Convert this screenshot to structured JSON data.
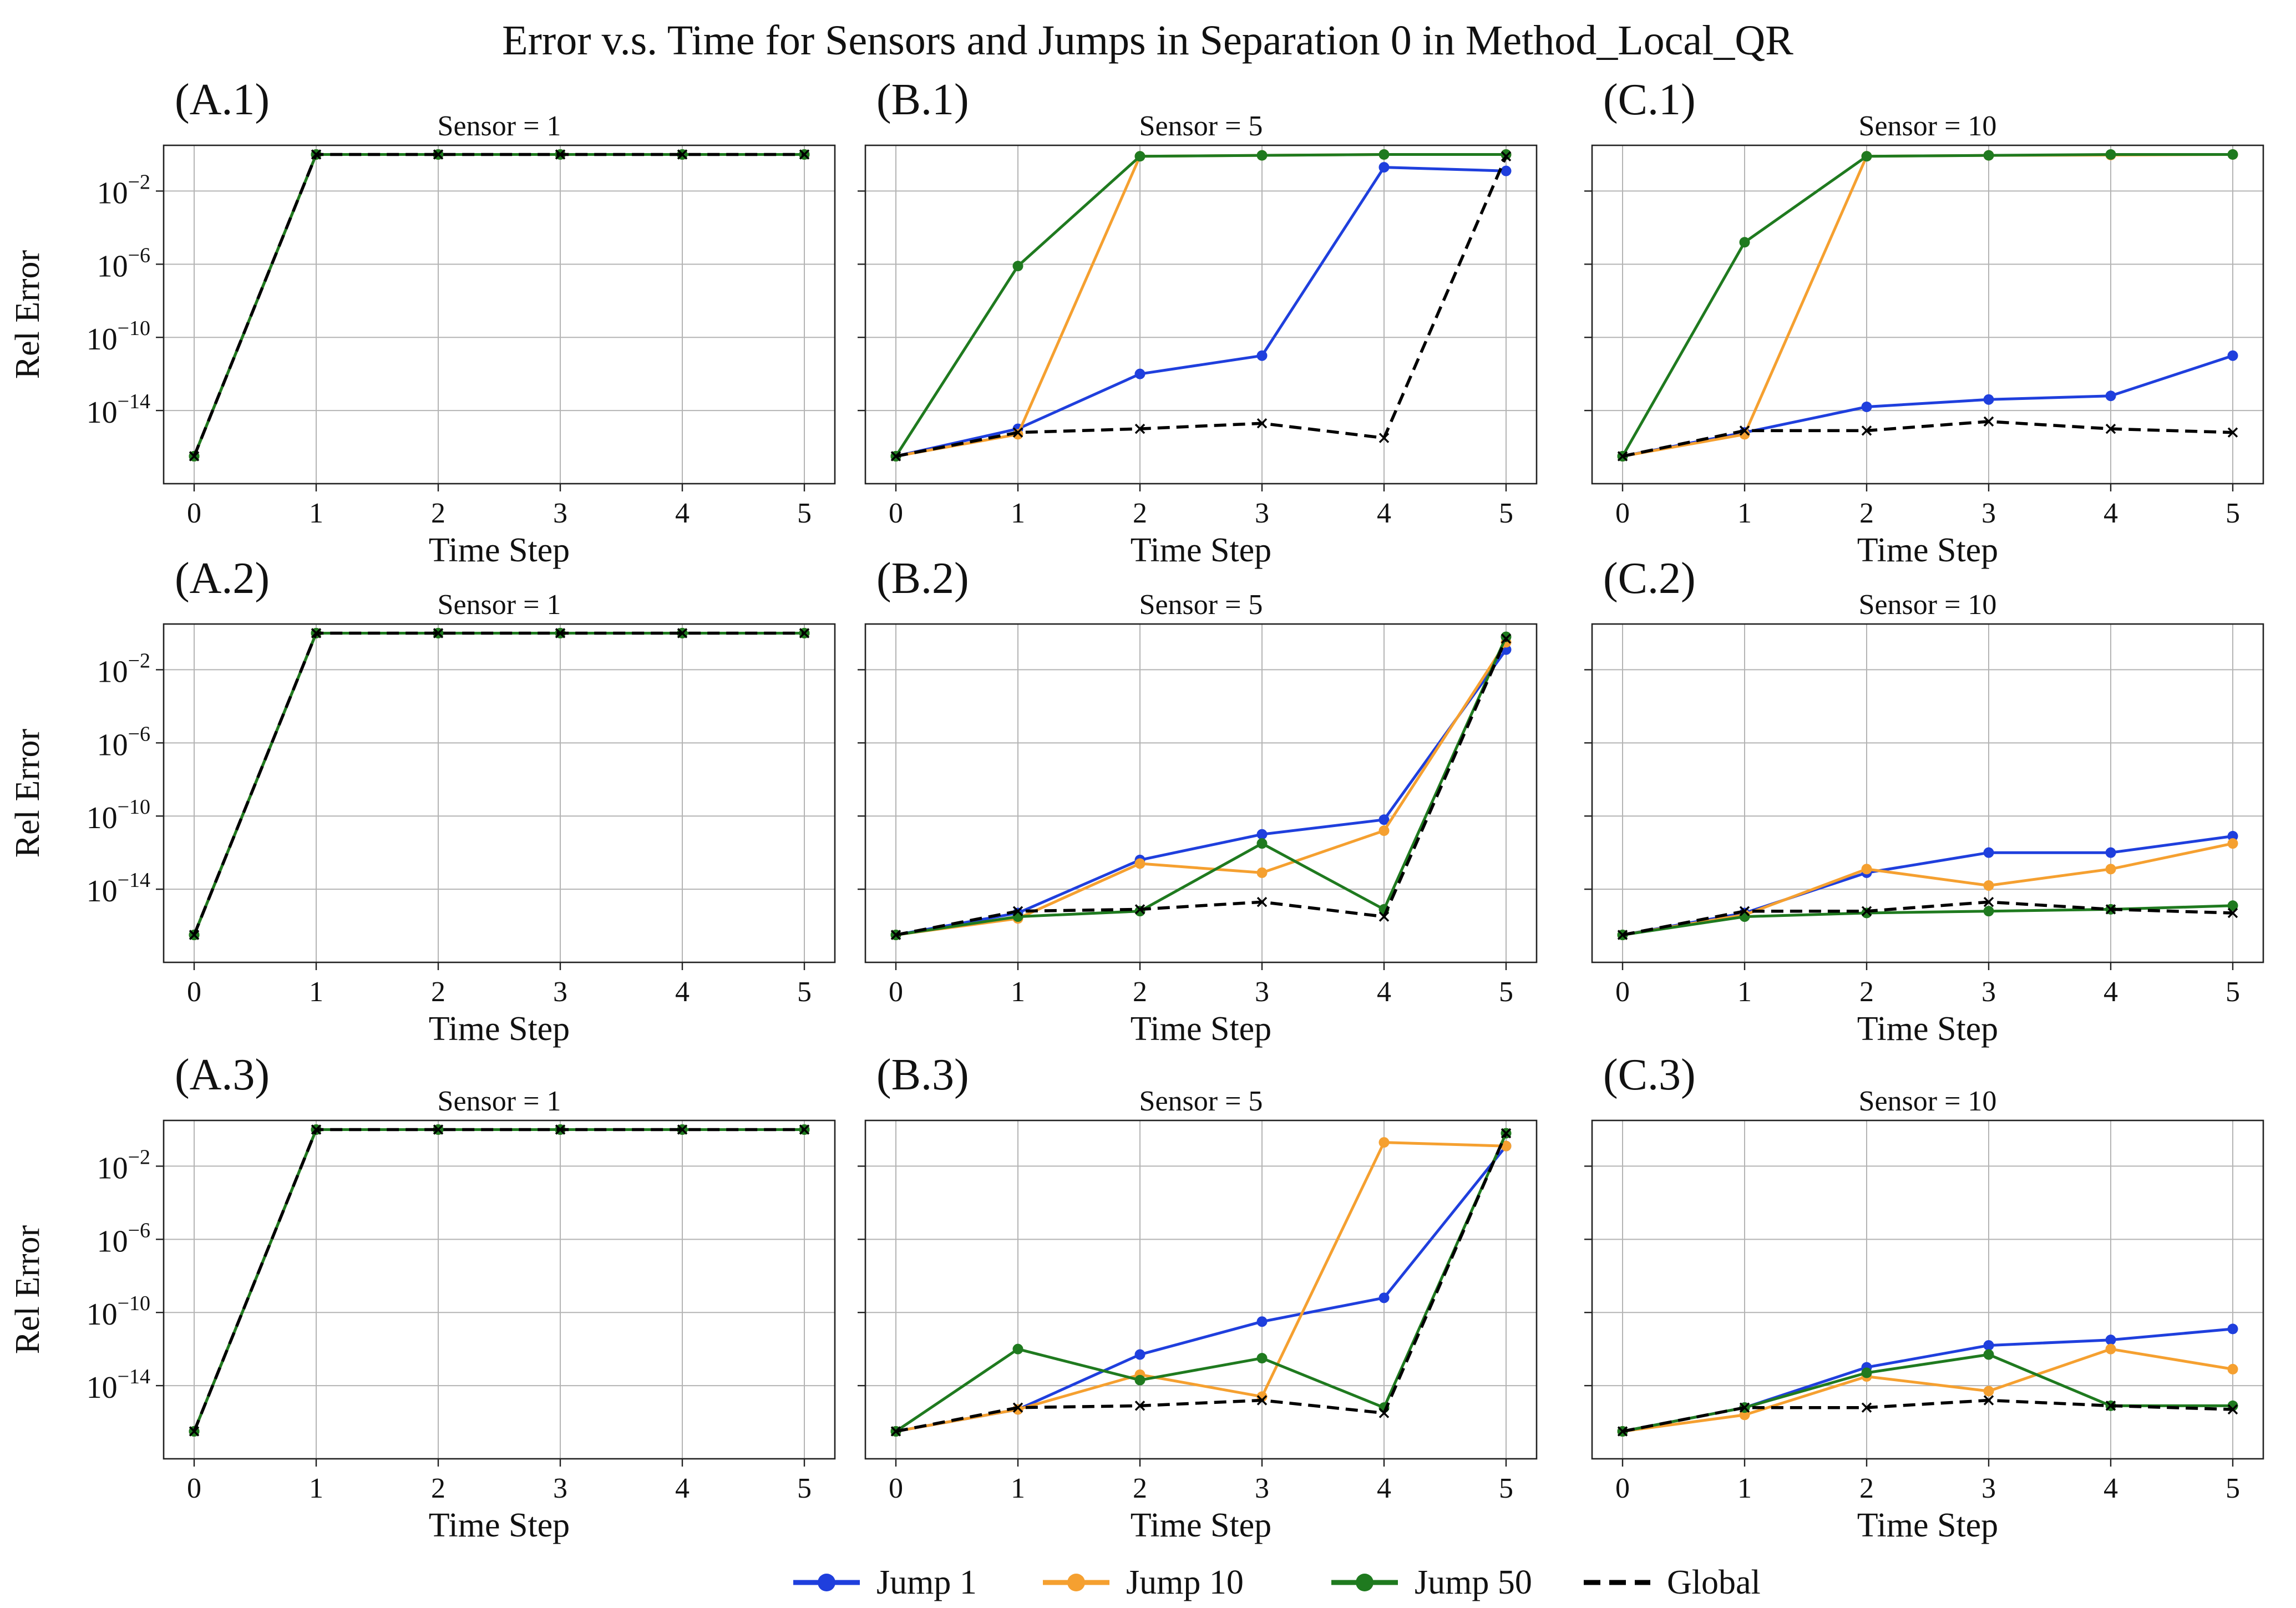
{
  "figure_title": "Error v.s. Time for Sensors and Jumps in Separation 0 in Method_Local_QR",
  "legend": {
    "entries": [
      {
        "label": "Jump 1",
        "color": "#1f3fdd",
        "style": "solid-dot"
      },
      {
        "label": "Jump 10",
        "color": "#f5a030",
        "style": "solid-dot"
      },
      {
        "label": "Jump 50",
        "color": "#1f7a1f",
        "style": "solid-dot"
      },
      {
        "label": "Global",
        "color": "#000000",
        "style": "dashed"
      }
    ]
  },
  "chart_data": [
    {
      "id": "A.1",
      "label": "(A.1)",
      "title": "Sensor = 1",
      "type": "line",
      "xlabel": "Time Step",
      "ylabel": "Rel Error",
      "x": [
        0,
        1,
        2,
        3,
        4,
        5
      ],
      "xticks": [
        "0",
        "1",
        "2",
        "3",
        "4",
        "5"
      ],
      "yscale": "log",
      "ylim_exp": [
        -18,
        0.5
      ],
      "yticks": [
        {
          "exp": -2,
          "label": "10"
        },
        {
          "exp": -6,
          "label": "10"
        },
        {
          "exp": -10,
          "label": "10"
        },
        {
          "exp": -14,
          "label": "10"
        }
      ],
      "yticks_sup": [
        "−2",
        "−6",
        "−10",
        "−14"
      ],
      "series": [
        {
          "name": "Jump 1",
          "log10_values": [
            -16.5,
            0,
            0,
            0,
            0,
            0
          ]
        },
        {
          "name": "Jump 10",
          "log10_values": [
            -16.5,
            0,
            0,
            0,
            0,
            0
          ]
        },
        {
          "name": "Jump 50",
          "log10_values": [
            -16.5,
            0,
            0,
            0,
            0,
            0
          ]
        },
        {
          "name": "Global",
          "log10_values": [
            -16.5,
            0,
            0,
            0,
            0,
            0
          ]
        }
      ]
    },
    {
      "id": "B.1",
      "label": "(B.1)",
      "title": "Sensor = 5",
      "type": "line",
      "xlabel": "Time Step",
      "ylabel": "",
      "x": [
        0,
        1,
        2,
        3,
        4,
        5
      ],
      "xticks": [
        "0",
        "1",
        "2",
        "3",
        "4",
        "5"
      ],
      "yscale": "log",
      "ylim_exp": [
        -18,
        0.5
      ],
      "yticks": [],
      "yticks_sup": [],
      "series": [
        {
          "name": "Jump 1",
          "log10_values": [
            -16.5,
            -15.0,
            -12.0,
            -11.0,
            -0.7,
            -0.9
          ]
        },
        {
          "name": "Jump 10",
          "log10_values": [
            -16.5,
            -15.3,
            -0.1,
            -0.05,
            0,
            0
          ]
        },
        {
          "name": "Jump 50",
          "log10_values": [
            -16.5,
            -6.1,
            -0.1,
            -0.05,
            0,
            0
          ]
        },
        {
          "name": "Global",
          "log10_values": [
            -16.5,
            -15.2,
            -15.0,
            -14.7,
            -15.5,
            -0.1
          ]
        }
      ]
    },
    {
      "id": "C.1",
      "label": "(C.1)",
      "title": "Sensor = 10",
      "type": "line",
      "xlabel": "Time Step",
      "ylabel": "",
      "x": [
        0,
        1,
        2,
        3,
        4,
        5
      ],
      "xticks": [
        "0",
        "1",
        "2",
        "3",
        "4",
        "5"
      ],
      "yscale": "log",
      "ylim_exp": [
        -18,
        0.5
      ],
      "yticks": [],
      "yticks_sup": [],
      "series": [
        {
          "name": "Jump 1",
          "log10_values": [
            -16.5,
            -15.2,
            -13.8,
            -13.4,
            -13.2,
            -11.0
          ]
        },
        {
          "name": "Jump 10",
          "log10_values": [
            -16.5,
            -15.3,
            -0.1,
            -0.05,
            -0.03,
            0
          ]
        },
        {
          "name": "Jump 50",
          "log10_values": [
            -16.5,
            -4.8,
            -0.1,
            -0.05,
            0,
            0
          ]
        },
        {
          "name": "Global",
          "log10_values": [
            -16.5,
            -15.1,
            -15.1,
            -14.6,
            -15.0,
            -15.2
          ]
        }
      ]
    },
    {
      "id": "A.2",
      "label": "(A.2)",
      "title": "Sensor = 1",
      "type": "line",
      "xlabel": "Time Step",
      "ylabel": "Rel Error",
      "x": [
        0,
        1,
        2,
        3,
        4,
        5
      ],
      "xticks": [
        "0",
        "1",
        "2",
        "3",
        "4",
        "5"
      ],
      "yscale": "log",
      "ylim_exp": [
        -18,
        0.5
      ],
      "yticks": [
        {
          "exp": -2,
          "label": "10"
        },
        {
          "exp": -6,
          "label": "10"
        },
        {
          "exp": -10,
          "label": "10"
        },
        {
          "exp": -14,
          "label": "10"
        }
      ],
      "yticks_sup": [
        "−2",
        "−6",
        "−10",
        "−14"
      ],
      "series": [
        {
          "name": "Jump 1",
          "log10_values": [
            -16.5,
            0,
            0,
            0,
            0,
            0
          ]
        },
        {
          "name": "Jump 10",
          "log10_values": [
            -16.5,
            0,
            0,
            0,
            0,
            0
          ]
        },
        {
          "name": "Jump 50",
          "log10_values": [
            -16.5,
            0,
            0,
            0,
            0,
            0
          ]
        },
        {
          "name": "Global",
          "log10_values": [
            -16.5,
            0,
            0,
            0,
            0,
            0
          ]
        }
      ]
    },
    {
      "id": "B.2",
      "label": "(B.2)",
      "title": "Sensor = 5",
      "type": "line",
      "xlabel": "Time Step",
      "ylabel": "",
      "x": [
        0,
        1,
        2,
        3,
        4,
        5
      ],
      "xticks": [
        "0",
        "1",
        "2",
        "3",
        "4",
        "5"
      ],
      "yscale": "log",
      "ylim_exp": [
        -18,
        0.5
      ],
      "yticks": [],
      "yticks_sup": [],
      "series": [
        {
          "name": "Jump 1",
          "log10_values": [
            -16.5,
            -15.3,
            -12.4,
            -11.0,
            -10.2,
            -0.9
          ]
        },
        {
          "name": "Jump 10",
          "log10_values": [
            -16.5,
            -15.6,
            -12.6,
            -13.1,
            -10.8,
            -0.5
          ]
        },
        {
          "name": "Jump 50",
          "log10_values": [
            -16.5,
            -15.5,
            -15.2,
            -11.5,
            -15.1,
            -0.2
          ]
        },
        {
          "name": "Global",
          "log10_values": [
            -16.5,
            -15.2,
            -15.1,
            -14.7,
            -15.5,
            -0.3
          ]
        }
      ]
    },
    {
      "id": "C.2",
      "label": "(C.2)",
      "title": "Sensor = 10",
      "type": "line",
      "xlabel": "Time Step",
      "ylabel": "",
      "x": [
        0,
        1,
        2,
        3,
        4,
        5
      ],
      "xticks": [
        "0",
        "1",
        "2",
        "3",
        "4",
        "5"
      ],
      "yscale": "log",
      "ylim_exp": [
        -18,
        0.5
      ],
      "yticks": [],
      "yticks_sup": [],
      "series": [
        {
          "name": "Jump 1",
          "log10_values": [
            -16.5,
            -15.3,
            -13.1,
            -12.0,
            -12.0,
            -11.1
          ]
        },
        {
          "name": "Jump 10",
          "log10_values": [
            -16.5,
            -15.4,
            -12.9,
            -13.8,
            -12.9,
            -11.5
          ]
        },
        {
          "name": "Jump 50",
          "log10_values": [
            -16.5,
            -15.5,
            -15.3,
            -15.2,
            -15.1,
            -14.9
          ]
        },
        {
          "name": "Global",
          "log10_values": [
            -16.5,
            -15.2,
            -15.2,
            -14.7,
            -15.1,
            -15.3
          ]
        }
      ]
    },
    {
      "id": "A.3",
      "label": "(A.3)",
      "title": "Sensor = 1",
      "type": "line",
      "xlabel": "Time Step",
      "ylabel": "Rel Error",
      "x": [
        0,
        1,
        2,
        3,
        4,
        5
      ],
      "xticks": [
        "0",
        "1",
        "2",
        "3",
        "4",
        "5"
      ],
      "yscale": "log",
      "ylim_exp": [
        -18,
        0.5
      ],
      "yticks": [
        {
          "exp": -2,
          "label": "10"
        },
        {
          "exp": -6,
          "label": "10"
        },
        {
          "exp": -10,
          "label": "10"
        },
        {
          "exp": -14,
          "label": "10"
        }
      ],
      "yticks_sup": [
        "−2",
        "−6",
        "−10",
        "−14"
      ],
      "series": [
        {
          "name": "Jump 1",
          "log10_values": [
            -16.5,
            0,
            0,
            0,
            0,
            0
          ]
        },
        {
          "name": "Jump 10",
          "log10_values": [
            -16.5,
            0,
            0,
            0,
            0,
            0
          ]
        },
        {
          "name": "Jump 50",
          "log10_values": [
            -16.5,
            0,
            0,
            0,
            0,
            0
          ]
        },
        {
          "name": "Global",
          "log10_values": [
            -16.5,
            0,
            0,
            0,
            0,
            0
          ]
        }
      ]
    },
    {
      "id": "B.3",
      "label": "(B.3)",
      "title": "Sensor = 5",
      "type": "line",
      "xlabel": "Time Step",
      "ylabel": "",
      "x": [
        0,
        1,
        2,
        3,
        4,
        5
      ],
      "xticks": [
        "0",
        "1",
        "2",
        "3",
        "4",
        "5"
      ],
      "yscale": "log",
      "ylim_exp": [
        -18,
        0.5
      ],
      "yticks": [],
      "yticks_sup": [],
      "series": [
        {
          "name": "Jump 1",
          "log10_values": [
            -16.5,
            -15.3,
            -12.3,
            -10.5,
            -9.2,
            -0.9
          ]
        },
        {
          "name": "Jump 10",
          "log10_values": [
            -16.5,
            -15.3,
            -13.4,
            -14.6,
            -0.7,
            -0.9
          ]
        },
        {
          "name": "Jump 50",
          "log10_values": [
            -16.5,
            -12.0,
            -13.7,
            -12.5,
            -15.2,
            -0.2
          ]
        },
        {
          "name": "Global",
          "log10_values": [
            -16.5,
            -15.2,
            -15.1,
            -14.8,
            -15.5,
            -0.2
          ]
        }
      ]
    },
    {
      "id": "C.3",
      "label": "(C.3)",
      "title": "Sensor = 10",
      "type": "line",
      "xlabel": "Time Step",
      "ylabel": "",
      "x": [
        0,
        1,
        2,
        3,
        4,
        5
      ],
      "xticks": [
        "0",
        "1",
        "2",
        "3",
        "4",
        "5"
      ],
      "yscale": "log",
      "ylim_exp": [
        -18,
        0.5
      ],
      "yticks": [],
      "yticks_sup": [],
      "series": [
        {
          "name": "Jump 1",
          "log10_values": [
            -16.5,
            -15.2,
            -13.0,
            -11.8,
            -11.5,
            -10.9
          ]
        },
        {
          "name": "Jump 10",
          "log10_values": [
            -16.5,
            -15.6,
            -13.5,
            -14.3,
            -12.0,
            -13.1
          ]
        },
        {
          "name": "Jump 50",
          "log10_values": [
            -16.5,
            -15.2,
            -13.3,
            -12.3,
            -15.1,
            -15.1
          ]
        },
        {
          "name": "Global",
          "log10_values": [
            -16.5,
            -15.2,
            -15.2,
            -14.8,
            -15.1,
            -15.3
          ]
        }
      ]
    }
  ]
}
